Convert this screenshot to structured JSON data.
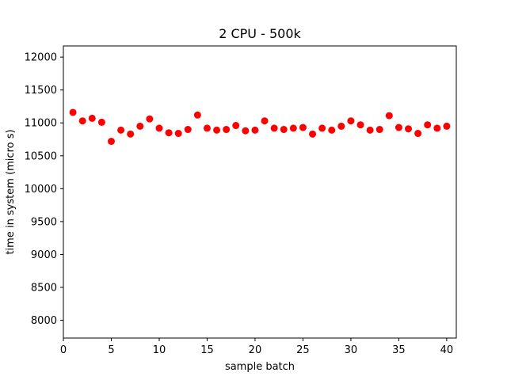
{
  "chart_data": {
    "type": "scatter",
    "title": "2 CPU - 500k",
    "xlabel": "sample batch",
    "ylabel": "time in system (micro s)",
    "xlim": [
      0,
      41
    ],
    "ylim": [
      7730,
      12170
    ],
    "xticks": [
      0,
      5,
      10,
      15,
      20,
      25,
      30,
      35,
      40
    ],
    "yticks": [
      8000,
      8500,
      9000,
      9500,
      10000,
      10500,
      11000,
      11500,
      12000
    ],
    "grid": false,
    "marker_color": "#ff0000",
    "series": [
      {
        "x": [
          1,
          2,
          3,
          4,
          5,
          6,
          7,
          8,
          9,
          10,
          11,
          12,
          13,
          14,
          15,
          16,
          17,
          18,
          19,
          20,
          21,
          22,
          23,
          24,
          25,
          26,
          27,
          28,
          29,
          30,
          31,
          32,
          33,
          34,
          35,
          36,
          37,
          38,
          39,
          40
        ],
        "y": [
          11160,
          11030,
          11070,
          11010,
          10720,
          10890,
          10830,
          10950,
          11060,
          10920,
          10850,
          10840,
          10900,
          11120,
          10920,
          10890,
          10900,
          10960,
          10880,
          10890,
          11030,
          10920,
          10900,
          10920,
          10930,
          10830,
          10920,
          10890,
          10950,
          11030,
          10970,
          10890,
          10900,
          11110,
          10930,
          10910,
          10840,
          10970,
          10920,
          10950
        ]
      }
    ]
  }
}
